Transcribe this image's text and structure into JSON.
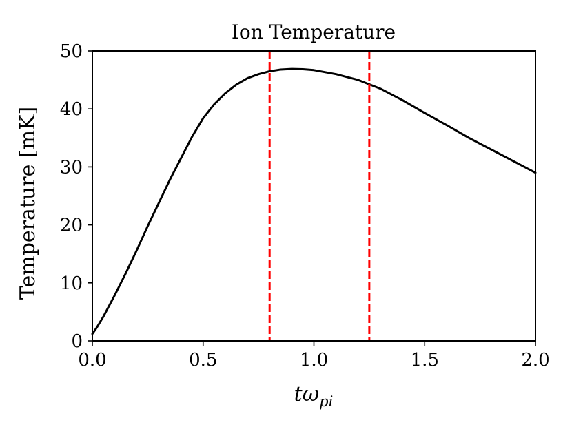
{
  "chart_data": {
    "type": "line",
    "title": "Ion Temperature",
    "xlabel": "tω",
    "xlabel_subscript": "pi",
    "ylabel": "Temperature [mK]",
    "xlim": [
      0,
      2.0
    ],
    "ylim": [
      0,
      50
    ],
    "x_ticks": [
      0.0,
      0.5,
      1.0,
      1.5,
      2.0
    ],
    "x_tick_labels": [
      "0.0",
      "0.5",
      "1.0",
      "1.5",
      "2.0"
    ],
    "y_ticks": [
      0,
      10,
      20,
      30,
      40,
      50
    ],
    "y_tick_labels": [
      "0",
      "10",
      "20",
      "30",
      "40",
      "50"
    ],
    "grid": false,
    "series": [
      {
        "color": "#000000",
        "x": [
          0.0,
          0.02,
          0.05,
          0.1,
          0.15,
          0.2,
          0.25,
          0.3,
          0.35,
          0.4,
          0.45,
          0.5,
          0.55,
          0.6,
          0.65,
          0.7,
          0.75,
          0.8,
          0.85,
          0.9,
          0.95,
          1.0,
          1.1,
          1.2,
          1.3,
          1.4,
          1.5,
          1.6,
          1.7,
          1.8,
          1.9,
          2.0
        ],
        "y": [
          1.2,
          2.3,
          4.2,
          7.8,
          11.6,
          15.6,
          19.8,
          23.8,
          27.8,
          31.5,
          35.2,
          38.4,
          40.8,
          42.7,
          44.2,
          45.3,
          46.0,
          46.5,
          46.8,
          46.9,
          46.85,
          46.7,
          46.0,
          45.0,
          43.5,
          41.5,
          39.3,
          37.2,
          35.0,
          33.0,
          31.0,
          29.0
        ]
      }
    ],
    "vlines": [
      {
        "x": 0.8,
        "color": "#ff0000",
        "style": "dashed"
      },
      {
        "x": 1.25,
        "color": "#ff0000",
        "style": "dashed"
      }
    ]
  }
}
